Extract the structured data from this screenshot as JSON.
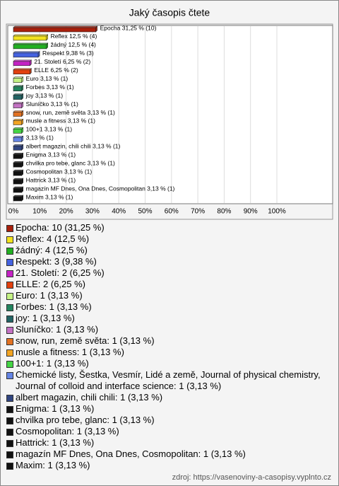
{
  "chart_data": {
    "type": "bar",
    "orientation": "horizontal",
    "title": "Jaký časopis čtete",
    "categories": [
      "Epocha",
      "Reflex",
      "žádný",
      "Respekt",
      "21. Století",
      "ELLE",
      "Euro",
      "Forbes",
      "joy",
      "Sluníčko",
      "snow, run, země světa",
      "musle a fitness",
      "100+1",
      null,
      "albert magazin, chili chili",
      "Enigma",
      "chvilka pro tebe, glanc",
      "Cosmopolitan",
      "Hattrick",
      "magazín MF Dnes, Ona Dnes, Cosmopolitan",
      "Maxim"
    ],
    "values": [
      31.25,
      12.5,
      12.5,
      9.38,
      6.25,
      6.25,
      3.13,
      3.13,
      3.13,
      3.13,
      3.13,
      3.13,
      3.13,
      3.13,
      3.13,
      3.13,
      3.13,
      3.13,
      3.13,
      3.13,
      3.13
    ],
    "value_labels": [
      "Epocha 31,25 % (10)",
      "Reflex 12,5 % (4)",
      "žádný 12,5 % (4)",
      "Respekt 9,38 % (3)",
      "21. Století 6,25 % (2)",
      "ELLE 6,25 % (2)",
      "Euro 3,13 % (1)",
      "Forbes 3,13 % (1)",
      "joy 3,13 % (1)",
      "Sluníčko 3,13 % (1)",
      "snow, run, země světa 3,13 % (1)",
      "musle a fitness 3,13 % (1)",
      "100+1 3,13 % (1)",
      "3,13 % (1)",
      "albert magazin, chili chili 3,13 % (1)",
      "Enigma 3,13 % (1)",
      "chvilka pro tebe, glanc 3,13 % (1)",
      "Cosmopolitan 3,13 % (1)",
      "Hattrick 3,13 % (1)",
      "magazín MF Dnes, Ona Dnes, Cosmopolitan 3,13 % (1)",
      "Maxim 3,13 % (1)"
    ],
    "colors": [
      "#a8200c",
      "#f2e21e",
      "#22b022",
      "#4462e0",
      "#c422c4",
      "#e2400e",
      "#c4f284",
      "#22845e",
      "#226464",
      "#c472c4",
      "#e27222",
      "#f2a422",
      "#44d444",
      "#6484e4",
      "#304480",
      "#111111",
      "#111111",
      "#111111",
      "#111111",
      "#111111",
      "#111111"
    ],
    "legend": [
      "Epocha: 10 (31,25 %)",
      "Reflex: 4 (12,5 %)",
      "žádný: 4 (12,5 %)",
      "Respekt: 3 (9,38 %)",
      "21. Století: 2 (6,25 %)",
      "ELLE: 2 (6,25 %)",
      "Euro: 1 (3,13 %)",
      "Forbes: 1 (3,13 %)",
      "joy: 1 (3,13 %)",
      "Sluníčko: 1 (3,13 %)",
      "snow, run, země světa: 1 (3,13 %)",
      "musle a fitness: 1 (3,13 %)",
      "100+1: 1 (3,13 %)",
      "Chemické listy, Šestka, Vesmír, Lidé a země, Journal of physical chemistry, Journal of colloid and interface science: 1 (3,13 %)",
      "albert magazin, chili chili: 1 (3,13 %)",
      "Enigma: 1 (3,13 %)",
      "chvilka pro tebe, glanc: 1 (3,13 %)",
      "Cosmopolitan: 1 (3,13 %)",
      "Hattrick: 1 (3,13 %)",
      "magazín MF Dnes, Ona Dnes, Cosmopolitan: 1 (3,13 %)",
      "Maxim: 1 (3,13 %)"
    ],
    "xlim": [
      0,
      100
    ],
    "xticks": [
      {
        "value": 0,
        "label": "0%"
      },
      {
        "value": 10,
        "label": "10%"
      },
      {
        "value": 20,
        "label": "20%"
      },
      {
        "value": 30,
        "label": "30%"
      },
      {
        "value": 40,
        "label": "40%"
      },
      {
        "value": 50,
        "label": "50%"
      },
      {
        "value": 60,
        "label": "60%"
      },
      {
        "value": 70,
        "label": "70%"
      },
      {
        "value": 80,
        "label": "80%"
      },
      {
        "value": 90,
        "label": "90%"
      },
      {
        "value": 100,
        "label": "100%"
      }
    ],
    "grid": true,
    "source": "zdroj: https://vasenoviny-a-casopisy.vyplnto.cz"
  }
}
